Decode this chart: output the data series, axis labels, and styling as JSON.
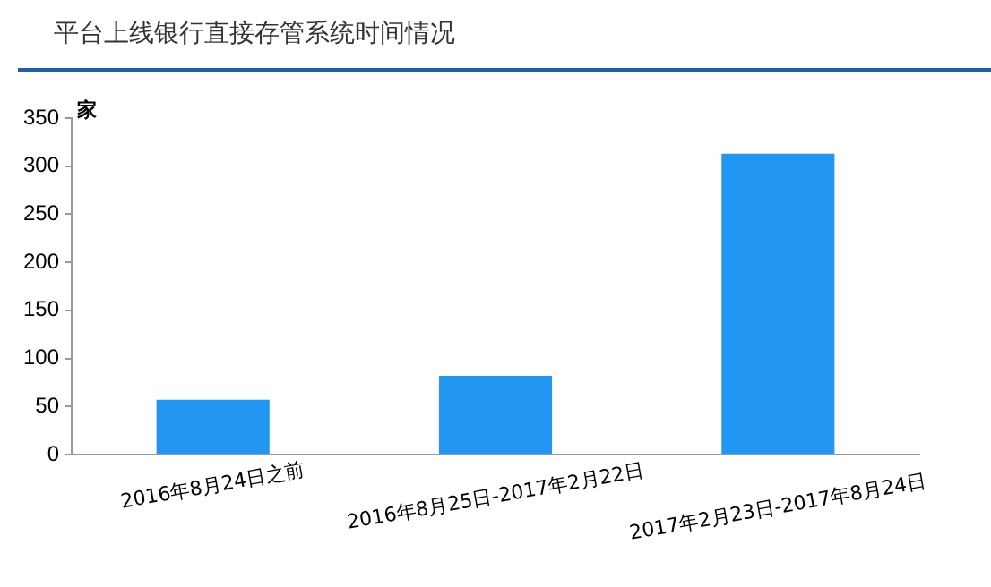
{
  "chart_data": {
    "type": "bar",
    "title": "平台上线银行直接存管系统时间情况",
    "ylabel": "家",
    "categories": [
      "2016年8月24日之前",
      "2016年8月25日-2017年2月22日",
      "2017年2月23日-2017年8月24日"
    ],
    "values": [
      57,
      82,
      313
    ],
    "color": "#2196f3",
    "ylim": [
      0,
      350
    ],
    "yticks": [
      0,
      50,
      100,
      150,
      200,
      250,
      300,
      350
    ],
    "grid": false
  }
}
